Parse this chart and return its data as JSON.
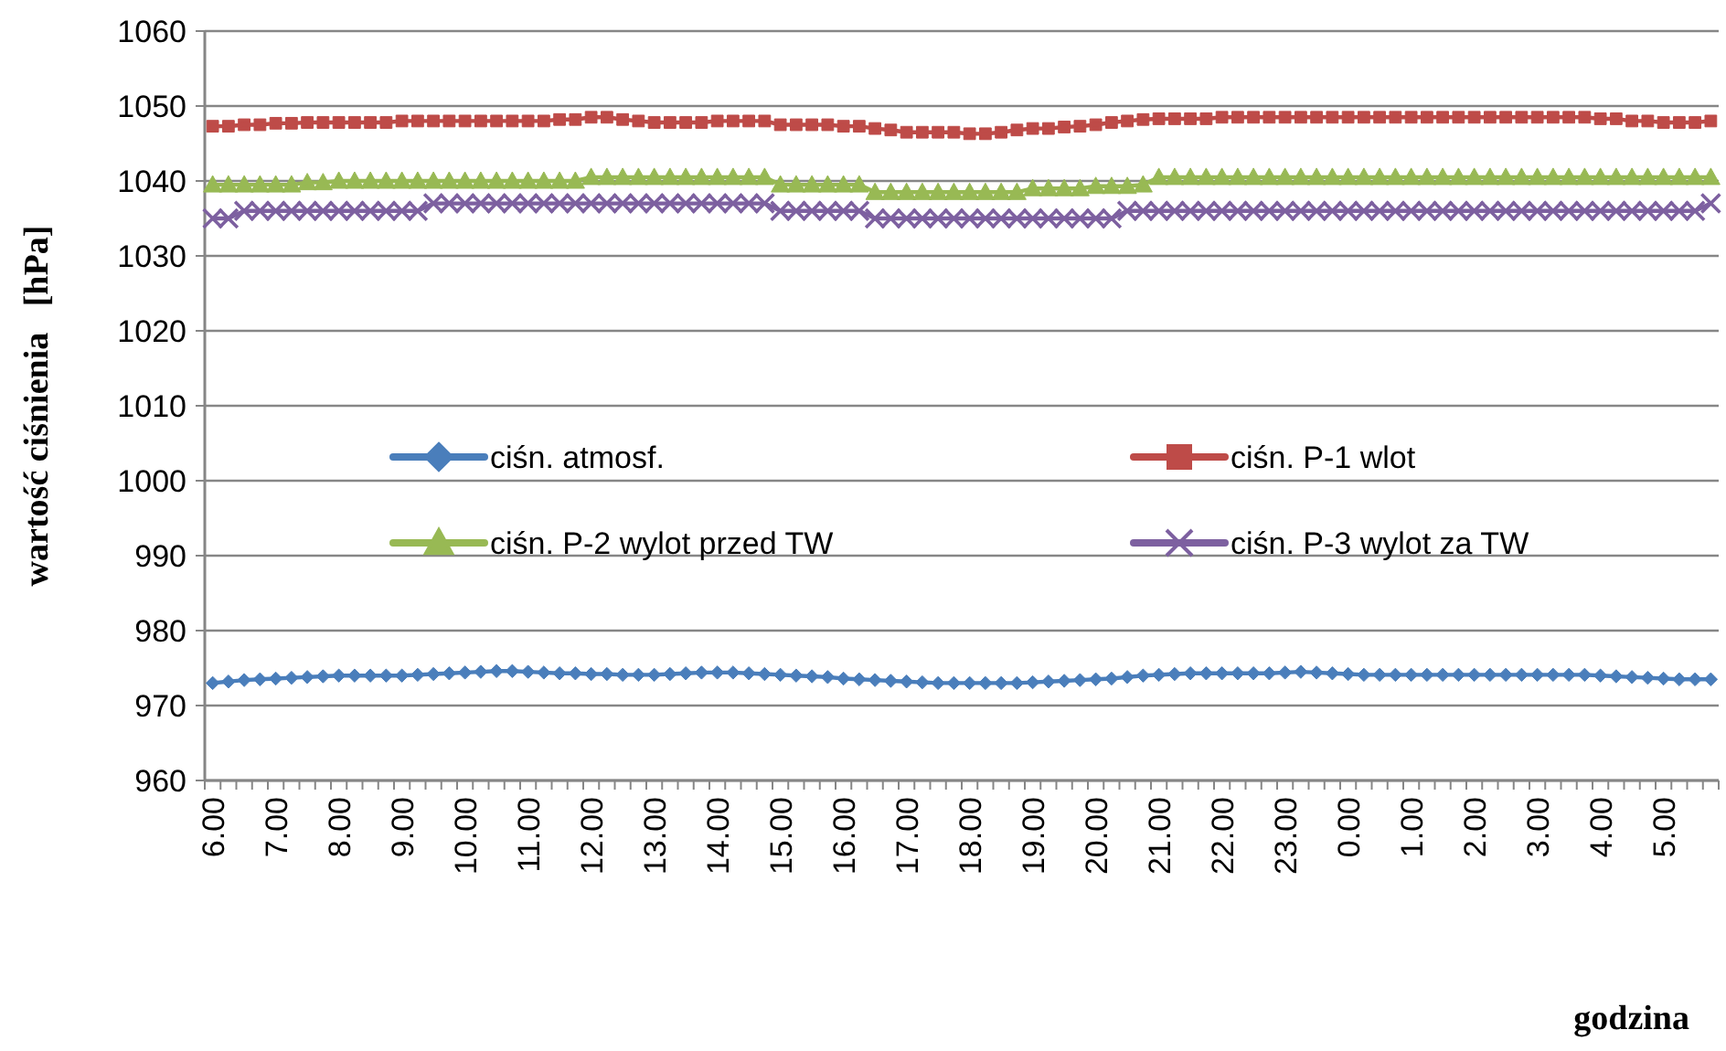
{
  "chart_data": {
    "type": "line",
    "xlabel": "godzina",
    "ylabel": "wartość ciśnienia   [hPa]",
    "categories": [
      "6.00",
      null,
      null,
      null,
      "7.00",
      null,
      null,
      null,
      "8.00",
      null,
      null,
      null,
      "9.00",
      null,
      null,
      null,
      "10.00",
      null,
      null,
      null,
      "11.00",
      null,
      null,
      null,
      "12.00",
      null,
      null,
      null,
      "13.00",
      null,
      null,
      null,
      "14.00",
      null,
      null,
      null,
      "15.00",
      null,
      null,
      null,
      "16.00",
      null,
      null,
      null,
      "17.00",
      null,
      null,
      null,
      "18.00",
      null,
      null,
      null,
      "19.00",
      null,
      null,
      null,
      "20.00",
      null,
      null,
      null,
      "21.00",
      null,
      null,
      null,
      "22.00",
      null,
      null,
      null,
      "23.00",
      null,
      null,
      null,
      "0.00",
      null,
      null,
      null,
      "1.00",
      null,
      null,
      null,
      "2.00",
      null,
      null,
      null,
      "3.00",
      null,
      null,
      null,
      "4.00",
      null,
      null,
      null,
      "5.00",
      null,
      null,
      null
    ],
    "ylim": [
      960,
      1060
    ],
    "yticks": [
      960,
      970,
      980,
      990,
      1000,
      1010,
      1020,
      1030,
      1040,
      1050,
      1060
    ],
    "grid": "y",
    "legend": "center",
    "series": [
      {
        "name": "ciśn. atmosf.",
        "color": "#4a7ebb",
        "marker": "diamond",
        "values": [
          973,
          973.2,
          973.4,
          973.5,
          973.6,
          973.7,
          973.8,
          973.9,
          974,
          974,
          974,
          974,
          974,
          974.1,
          974.2,
          974.3,
          974.4,
          974.5,
          974.6,
          974.6,
          974.5,
          974.4,
          974.3,
          974.3,
          974.2,
          974.2,
          974.1,
          974.1,
          974.1,
          974.2,
          974.3,
          974.4,
          974.4,
          974.4,
          974.3,
          974.2,
          974.1,
          974,
          973.9,
          973.8,
          973.6,
          973.5,
          973.4,
          973.3,
          973.2,
          973.1,
          973,
          973,
          973,
          973,
          973,
          973,
          973.1,
          973.2,
          973.3,
          973.4,
          973.5,
          973.6,
          973.8,
          974,
          974.1,
          974.2,
          974.3,
          974.3,
          974.3,
          974.3,
          974.3,
          974.3,
          974.4,
          974.5,
          974.4,
          974.3,
          974.2,
          974.1,
          974.1,
          974.1,
          974.1,
          974.1,
          974.1,
          974.1,
          974.1,
          974.1,
          974.1,
          974.1,
          974.1,
          974.1,
          974.1,
          974.1,
          974,
          973.9,
          973.8,
          973.7,
          973.6,
          973.5,
          973.5,
          973.5
        ]
      },
      {
        "name": "ciśn. P-1 wlot",
        "color": "#be4b48",
        "marker": "square",
        "values": [
          1047.3,
          1047.3,
          1047.5,
          1047.5,
          1047.7,
          1047.7,
          1047.8,
          1047.8,
          1047.8,
          1047.8,
          1047.8,
          1047.8,
          1048,
          1048,
          1048,
          1048,
          1048,
          1048,
          1048,
          1048,
          1048,
          1048,
          1048.2,
          1048.2,
          1048.5,
          1048.5,
          1048.2,
          1048,
          1047.8,
          1047.8,
          1047.8,
          1047.8,
          1048,
          1048,
          1048,
          1048,
          1047.5,
          1047.5,
          1047.5,
          1047.5,
          1047.3,
          1047.3,
          1047,
          1046.8,
          1046.5,
          1046.5,
          1046.5,
          1046.5,
          1046.3,
          1046.3,
          1046.5,
          1046.8,
          1047,
          1047,
          1047.2,
          1047.3,
          1047.5,
          1047.8,
          1048,
          1048.2,
          1048.3,
          1048.3,
          1048.3,
          1048.3,
          1048.5,
          1048.5,
          1048.5,
          1048.5,
          1048.5,
          1048.5,
          1048.5,
          1048.5,
          1048.5,
          1048.5,
          1048.5,
          1048.5,
          1048.5,
          1048.5,
          1048.5,
          1048.5,
          1048.5,
          1048.5,
          1048.5,
          1048.5,
          1048.5,
          1048.5,
          1048.5,
          1048.5,
          1048.3,
          1048.3,
          1048,
          1048,
          1047.8,
          1047.8,
          1047.8,
          1048
        ]
      },
      {
        "name": "ciśn. P-2 wylot przed TW",
        "color": "#98b954",
        "marker": "triangle",
        "values": [
          1039.5,
          1039.5,
          1039.5,
          1039.5,
          1039.5,
          1039.5,
          1039.8,
          1039.8,
          1040,
          1040,
          1040,
          1040,
          1040,
          1040,
          1040,
          1040,
          1040,
          1040,
          1040,
          1040,
          1040,
          1040,
          1040,
          1040,
          1040.5,
          1040.5,
          1040.5,
          1040.5,
          1040.5,
          1040.5,
          1040.5,
          1040.5,
          1040.5,
          1040.5,
          1040.5,
          1040.5,
          1039.5,
          1039.5,
          1039.5,
          1039.5,
          1039.5,
          1039.5,
          1038.5,
          1038.5,
          1038.5,
          1038.5,
          1038.5,
          1038.5,
          1038.5,
          1038.5,
          1038.5,
          1038.5,
          1039,
          1039,
          1039,
          1039,
          1039.3,
          1039.3,
          1039.3,
          1039.5,
          1040.5,
          1040.5,
          1040.5,
          1040.5,
          1040.5,
          1040.5,
          1040.5,
          1040.5,
          1040.5,
          1040.5,
          1040.5,
          1040.5,
          1040.5,
          1040.5,
          1040.5,
          1040.5,
          1040.5,
          1040.5,
          1040.5,
          1040.5,
          1040.5,
          1040.5,
          1040.5,
          1040.5,
          1040.5,
          1040.5,
          1040.5,
          1040.5,
          1040.5,
          1040.5,
          1040.5,
          1040.5,
          1040.5,
          1040.5,
          1040.5,
          1040.5
        ]
      },
      {
        "name": "ciśn. P-3 wylot za TW",
        "color": "#7d60a0",
        "marker": "cross",
        "values": [
          1035,
          1035,
          1036,
          1036,
          1036,
          1036,
          1036,
          1036,
          1036,
          1036,
          1036,
          1036,
          1036,
          1036,
          1037,
          1037,
          1037,
          1037,
          1037,
          1037,
          1037,
          1037,
          1037,
          1037,
          1037,
          1037,
          1037,
          1037,
          1037,
          1037,
          1037,
          1037,
          1037,
          1037,
          1037,
          1037,
          1036,
          1036,
          1036,
          1036,
          1036,
          1036,
          1035,
          1035,
          1035,
          1035,
          1035,
          1035,
          1035,
          1035,
          1035,
          1035,
          1035,
          1035,
          1035,
          1035,
          1035,
          1035,
          1036,
          1036,
          1036,
          1036,
          1036,
          1036,
          1036,
          1036,
          1036,
          1036,
          1036,
          1036,
          1036,
          1036,
          1036,
          1036,
          1036,
          1036,
          1036,
          1036,
          1036,
          1036,
          1036,
          1036,
          1036,
          1036,
          1036,
          1036,
          1036,
          1036,
          1036,
          1036,
          1036,
          1036,
          1036,
          1036,
          1036,
          1037
        ]
      }
    ]
  }
}
